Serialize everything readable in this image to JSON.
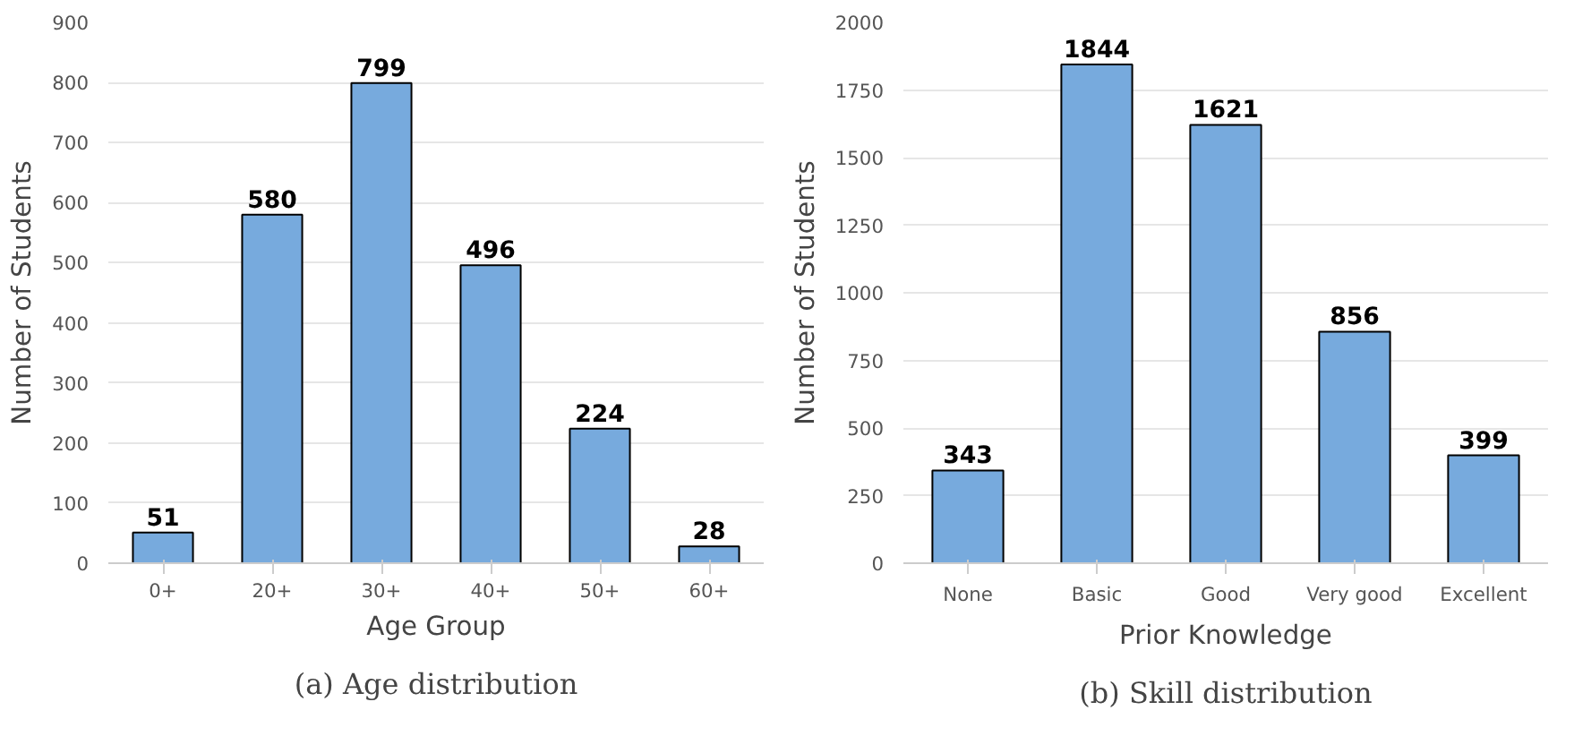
{
  "chart_data": [
    {
      "type": "bar",
      "title": "(a) Age distribution",
      "xlabel": "Age Group",
      "ylabel": "Number of Students",
      "categories": [
        "0+",
        "20+",
        "30+",
        "40+",
        "50+",
        "60+"
      ],
      "values": [
        51,
        580,
        799,
        496,
        224,
        28
      ],
      "color": "#77aadd",
      "ylim": [
        0,
        900
      ],
      "yticks": [
        0,
        100,
        200,
        300,
        400,
        500,
        600,
        700,
        800,
        900
      ],
      "grid": "y",
      "data_labels": true
    },
    {
      "type": "bar",
      "title": "(b) Skill distribution",
      "xlabel": "Prior Knowledge",
      "ylabel": "Number of Students",
      "categories": [
        "None",
        "Basic",
        "Good",
        "Very good",
        "Excellent"
      ],
      "values": [
        343,
        1844,
        1621,
        856,
        399
      ],
      "color": "#77aadd",
      "ylim": [
        0,
        2000
      ],
      "yticks": [
        0,
        250,
        500,
        750,
        1000,
        1250,
        1500,
        1750,
        2000
      ],
      "grid": "y",
      "data_labels": true
    }
  ]
}
